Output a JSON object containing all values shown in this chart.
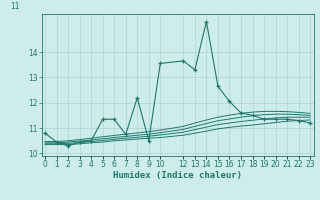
{
  "x": [
    0,
    1,
    2,
    3,
    4,
    5,
    6,
    7,
    8,
    9,
    10,
    12,
    13,
    14,
    15,
    16,
    17,
    18,
    19,
    20,
    21,
    22,
    23
  ],
  "main_line": [
    10.8,
    10.45,
    10.3,
    10.45,
    10.5,
    11.35,
    11.35,
    10.75,
    12.2,
    10.5,
    13.55,
    13.65,
    13.3,
    15.2,
    12.65,
    12.05,
    11.6,
    11.5,
    11.35,
    11.35,
    11.35,
    11.3,
    11.2
  ],
  "flat1": [
    10.35,
    10.35,
    10.35,
    10.38,
    10.42,
    10.45,
    10.5,
    10.53,
    10.57,
    10.6,
    10.63,
    10.72,
    10.8,
    10.88,
    10.97,
    11.03,
    11.08,
    11.12,
    11.17,
    11.22,
    11.27,
    11.3,
    11.32
  ],
  "flat2": [
    10.38,
    10.38,
    10.4,
    10.43,
    10.47,
    10.51,
    10.56,
    10.6,
    10.64,
    10.68,
    10.73,
    10.84,
    10.94,
    11.04,
    11.14,
    11.2,
    11.26,
    11.31,
    11.36,
    11.4,
    11.43,
    11.43,
    11.43
  ],
  "flat3": [
    10.42,
    10.42,
    10.45,
    10.49,
    10.53,
    10.58,
    10.63,
    10.67,
    10.72,
    10.76,
    10.82,
    10.95,
    11.07,
    11.18,
    11.29,
    11.36,
    11.43,
    11.49,
    11.53,
    11.55,
    11.55,
    11.53,
    11.5
  ],
  "flat4": [
    10.47,
    10.47,
    10.5,
    10.55,
    10.6,
    10.66,
    10.71,
    10.76,
    10.81,
    10.86,
    10.92,
    11.07,
    11.2,
    11.32,
    11.43,
    11.51,
    11.58,
    11.63,
    11.66,
    11.66,
    11.65,
    11.62,
    11.58
  ],
  "ylim": [
    9.9,
    15.5
  ],
  "yticks": [
    10,
    11,
    12,
    13,
    14
  ],
  "xtick_vals": [
    0,
    1,
    2,
    3,
    4,
    5,
    6,
    7,
    8,
    9,
    10,
    12,
    13,
    14,
    15,
    16,
    17,
    18,
    19,
    20,
    21,
    22,
    23
  ],
  "xlabel": "Humidex (Indice chaleur)",
  "color_main": "#1a7a6e",
  "bg_color": "#ceecea",
  "grid_color": "#aed4d0",
  "tick_fontsize": 5.5,
  "label_fontsize": 6.5
}
